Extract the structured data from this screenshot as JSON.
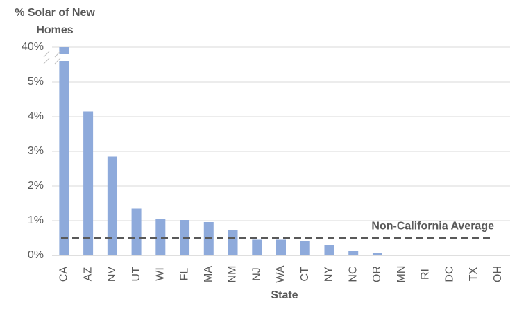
{
  "chart_data": {
    "type": "bar",
    "y_label": "% Solar of New Homes",
    "x_label": "State",
    "categories": [
      "CA",
      "AZ",
      "NV",
      "UT",
      "WI",
      "FL",
      "MA",
      "NM",
      "NJ",
      "WA",
      "CT",
      "NY",
      "NC",
      "OR",
      "MN",
      "RI",
      "DC",
      "TX",
      "OH"
    ],
    "values": [
      40,
      4.15,
      2.85,
      1.35,
      1.05,
      1.02,
      0.96,
      0.72,
      0.45,
      0.45,
      0.42,
      0.3,
      0.12,
      0.07,
      0,
      0,
      0,
      0,
      0
    ],
    "color": "#8eaadb",
    "ylim": [
      0,
      40
    ],
    "y_break": [
      5.6,
      39.6
    ],
    "yticks": [
      {
        "value": 0,
        "label": "0%"
      },
      {
        "value": 1,
        "label": "1%"
      },
      {
        "value": 2,
        "label": "2%"
      },
      {
        "value": 3,
        "label": "3%"
      },
      {
        "value": 4,
        "label": "4%"
      },
      {
        "value": 5,
        "label": "5%"
      },
      {
        "value": 40,
        "label": "40%"
      }
    ],
    "grid": true,
    "average": {
      "label": "Non-California Average",
      "value": 0.49
    }
  }
}
